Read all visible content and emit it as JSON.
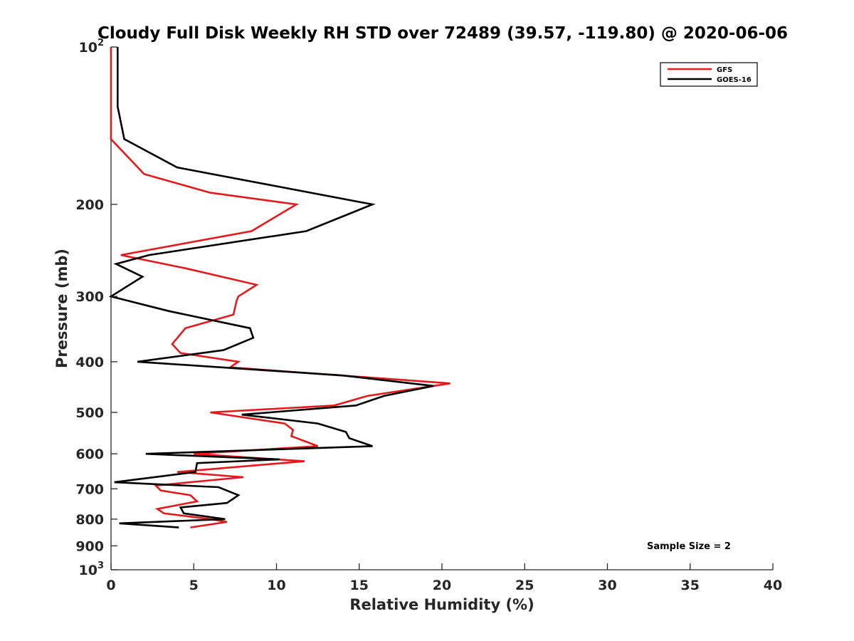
{
  "chart_data": {
    "type": "line",
    "title": "Cloudy Full Disk Weekly RH STD over 72489 (39.57, -119.80) @ 2020-06-06",
    "xlabel": "Relative Humidity (%)",
    "ylabel": "Pressure (mb)",
    "xlim": [
      0,
      40
    ],
    "ylim": [
      100,
      1000
    ],
    "y_scale": "log",
    "y_reversed": true,
    "x_ticks": [
      "0",
      "5",
      "10",
      "15",
      "20",
      "25",
      "30",
      "35",
      "40"
    ],
    "y_ticks": [
      {
        "value": 100,
        "label": "10",
        "sup": "2"
      },
      {
        "value": 200,
        "label": "200"
      },
      {
        "value": 300,
        "label": "300"
      },
      {
        "value": 400,
        "label": "400"
      },
      {
        "value": 500,
        "label": "500"
      },
      {
        "value": 600,
        "label": "600"
      },
      {
        "value": 700,
        "label": "700"
      },
      {
        "value": 800,
        "label": "800"
      },
      {
        "value": 900,
        "label": "900"
      },
      {
        "value": 1000,
        "label": "10",
        "sup": "3"
      }
    ],
    "legend_position": "top-right",
    "annotation": "Sample Size = 2",
    "series": [
      {
        "name": "GFS",
        "color": "#e31a1c",
        "points": [
          [
            0.0,
            100
          ],
          [
            0.0,
            125
          ],
          [
            0.0,
            150
          ],
          [
            2.0,
            175
          ],
          [
            6.0,
            190
          ],
          [
            11.2,
            200
          ],
          [
            8.5,
            225
          ],
          [
            0.6,
            250
          ],
          [
            4.5,
            265
          ],
          [
            8.8,
            285
          ],
          [
            7.7,
            300
          ],
          [
            7.6,
            305
          ],
          [
            7.4,
            325
          ],
          [
            4.5,
            345
          ],
          [
            3.7,
            370
          ],
          [
            4.2,
            385
          ],
          [
            7.7,
            400
          ],
          [
            7.2,
            410
          ],
          [
            20.5,
            440
          ],
          [
            15.5,
            465
          ],
          [
            13.5,
            485
          ],
          [
            6.0,
            500
          ],
          [
            10.5,
            525
          ],
          [
            11.0,
            540
          ],
          [
            10.9,
            555
          ],
          [
            12.5,
            580
          ],
          [
            5.0,
            600
          ],
          [
            11.7,
            620
          ],
          [
            4.0,
            650
          ],
          [
            8.0,
            665
          ],
          [
            2.7,
            690
          ],
          [
            3.0,
            705
          ],
          [
            4.8,
            720
          ],
          [
            5.2,
            740
          ],
          [
            2.8,
            765
          ],
          [
            3.2,
            780
          ],
          [
            6.0,
            800
          ],
          [
            7.0,
            810
          ],
          [
            4.8,
            830
          ]
        ]
      },
      {
        "name": "GOES-16",
        "color": "#000000",
        "points": [
          [
            0.4,
            100
          ],
          [
            0.4,
            130
          ],
          [
            0.8,
            150
          ],
          [
            4.0,
            170
          ],
          [
            15.8,
            200
          ],
          [
            11.8,
            225
          ],
          [
            2.3,
            250
          ],
          [
            0.3,
            260
          ],
          [
            1.9,
            275
          ],
          [
            0.0,
            300
          ],
          [
            3.5,
            320
          ],
          [
            8.4,
            345
          ],
          [
            8.6,
            360
          ],
          [
            6.8,
            380
          ],
          [
            1.6,
            400
          ],
          [
            14.0,
            425
          ],
          [
            19.5,
            445
          ],
          [
            16.5,
            465
          ],
          [
            14.8,
            485
          ],
          [
            7.9,
            505
          ],
          [
            12.5,
            525
          ],
          [
            14.2,
            545
          ],
          [
            14.4,
            560
          ],
          [
            15.8,
            580
          ],
          [
            2.1,
            600
          ],
          [
            10.2,
            615
          ],
          [
            5.2,
            625
          ],
          [
            5.1,
            650
          ],
          [
            0.2,
            680
          ],
          [
            6.5,
            695
          ],
          [
            7.7,
            720
          ],
          [
            7.0,
            745
          ],
          [
            4.2,
            760
          ],
          [
            4.4,
            780
          ],
          [
            6.9,
            800
          ],
          [
            0.5,
            815
          ],
          [
            4.1,
            830
          ]
        ]
      }
    ]
  }
}
